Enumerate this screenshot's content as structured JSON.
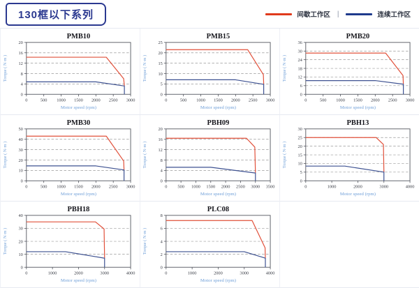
{
  "header": {
    "title": "130框以下系列"
  },
  "legend": {
    "separator": "|",
    "items": [
      {
        "label": "间歇工作区",
        "color": "#E03A1C"
      },
      {
        "label": "连续工作区",
        "color": "#1E3A8C"
      }
    ]
  },
  "colors": {
    "accent_navy": "#2B3990",
    "axis_label_blue": "#6F9FD8",
    "line_red": "#E1503A",
    "line_blue": "#3D5191",
    "grid_gray": "#999999",
    "axis_gray": "#52555E",
    "tick_text": "#3A3D46"
  },
  "chart_data": [
    {
      "type": "line",
      "title": "PMB10",
      "xlabel": "Motor speed (rpm)",
      "ylabel": "Torque ( N·m )",
      "xlim": [
        0,
        3000
      ],
      "ylim": [
        0,
        20
      ],
      "xticks": [
        0,
        500,
        1000,
        1500,
        2000,
        2500,
        3000
      ],
      "yticks": [
        0,
        4,
        8,
        12,
        16,
        20
      ],
      "grid": "horizontal-dashed",
      "legend_position": "none",
      "series": [
        {
          "name": "间歇工作区",
          "color": "#E1503A",
          "points": [
            [
              0,
              14.3
            ],
            [
              2300,
              14.3
            ],
            [
              2800,
              6
            ],
            [
              2820,
              3.2
            ]
          ]
        },
        {
          "name": "连续工作区",
          "color": "#3D5191",
          "points": [
            [
              0,
              4.8
            ],
            [
              2000,
              4.8
            ],
            [
              2820,
              3.2
            ],
            [
              2820,
              0
            ]
          ]
        }
      ]
    },
    {
      "type": "line",
      "title": "PMB15",
      "xlabel": "Motor speed (rpm)",
      "ylabel": "Torque ( N·m )",
      "xlim": [
        0,
        3000
      ],
      "ylim": [
        0,
        25
      ],
      "xticks": [
        0,
        500,
        1000,
        1500,
        2000,
        2500,
        3000
      ],
      "yticks": [
        0,
        5,
        10,
        15,
        20,
        25
      ],
      "grid": "horizontal-dashed",
      "legend_position": "none",
      "series": [
        {
          "name": "间歇工作区",
          "color": "#E1503A",
          "points": [
            [
              0,
              21.5
            ],
            [
              2350,
              21.5
            ],
            [
              2800,
              9.5
            ],
            [
              2810,
              5
            ]
          ]
        },
        {
          "name": "连续工作区",
          "color": "#3D5191",
          "points": [
            [
              0,
              7
            ],
            [
              2000,
              7
            ],
            [
              2810,
              4.8
            ],
            [
              2810,
              0
            ]
          ]
        }
      ]
    },
    {
      "type": "line",
      "title": "PMB20",
      "xlabel": "Motor speed (rpm)",
      "ylabel": "Torque ( N·m )",
      "xlim": [
        0,
        3000
      ],
      "ylim": [
        0,
        36
      ],
      "xticks": [
        0,
        500,
        1000,
        1500,
        2000,
        2500,
        3000
      ],
      "yticks": [
        0,
        6,
        12,
        18,
        24,
        30,
        36
      ],
      "grid": "horizontal-dashed",
      "legend_position": "none",
      "series": [
        {
          "name": "间歇工作区",
          "color": "#E1503A",
          "points": [
            [
              0,
              28.6
            ],
            [
              2300,
              28.6
            ],
            [
              2800,
              13
            ],
            [
              2810,
              7
            ]
          ]
        },
        {
          "name": "连续工作区",
          "color": "#3D5191",
          "points": [
            [
              0,
              9.5
            ],
            [
              2000,
              9.5
            ],
            [
              2810,
              7
            ],
            [
              2810,
              0
            ]
          ]
        }
      ]
    },
    {
      "type": "line",
      "title": "PMB30",
      "xlabel": "Motor speed (rpm)",
      "ylabel": "Torque ( N·m )",
      "xlim": [
        0,
        3000
      ],
      "ylim": [
        0,
        50
      ],
      "xticks": [
        0,
        500,
        1000,
        1500,
        2000,
        2500,
        3000
      ],
      "yticks": [
        0,
        10,
        20,
        30,
        40,
        50
      ],
      "grid": "horizontal-dashed",
      "legend_position": "none",
      "series": [
        {
          "name": "间歇工作区",
          "color": "#E1503A",
          "points": [
            [
              0,
              43
            ],
            [
              2300,
              43
            ],
            [
              2800,
              19
            ],
            [
              2810,
              10.5
            ]
          ]
        },
        {
          "name": "连续工作区",
          "color": "#3D5191",
          "points": [
            [
              0,
              14.3
            ],
            [
              2000,
              14.3
            ],
            [
              2810,
              10.5
            ],
            [
              2810,
              0
            ]
          ]
        }
      ]
    },
    {
      "type": "line",
      "title": "PBH09",
      "xlabel": "Motor speed (rpm)",
      "ylabel": "Torque ( N·m )",
      "xlim": [
        0,
        3500
      ],
      "ylim": [
        0,
        20
      ],
      "xticks": [
        0,
        500,
        1000,
        1500,
        2000,
        2500,
        3000,
        3500
      ],
      "yticks": [
        0,
        4,
        8,
        12,
        16,
        20
      ],
      "grid": "horizontal-dashed",
      "legend_position": "none",
      "series": [
        {
          "name": "间歇工作区",
          "color": "#E1503A",
          "points": [
            [
              0,
              16.4
            ],
            [
              2700,
              16.4
            ],
            [
              2980,
              13
            ],
            [
              3000,
              3
            ]
          ]
        },
        {
          "name": "连续工作区",
          "color": "#3D5191",
          "points": [
            [
              0,
              5.2
            ],
            [
              1500,
              5.2
            ],
            [
              3000,
              3
            ],
            [
              3000,
              0
            ]
          ]
        }
      ]
    },
    {
      "type": "line",
      "title": "PBH13",
      "xlabel": "Motor speed (rpm)",
      "ylabel": "Torque ( N·m )",
      "xlim": [
        0,
        4000
      ],
      "ylim": [
        0,
        30
      ],
      "xticks": [
        0,
        1000,
        2000,
        3000,
        4000
      ],
      "yticks": [
        0,
        5,
        10,
        15,
        20,
        25,
        30
      ],
      "grid": "horizontal-dashed",
      "legend_position": "none",
      "series": [
        {
          "name": "间歇工作区",
          "color": "#E1503A",
          "points": [
            [
              0,
              25
            ],
            [
              2700,
              25
            ],
            [
              2980,
              21
            ],
            [
              3000,
              5
            ]
          ]
        },
        {
          "name": "连续工作区",
          "color": "#3D5191",
          "points": [
            [
              0,
              8.5
            ],
            [
              1500,
              8.5
            ],
            [
              3000,
              5
            ],
            [
              3000,
              0
            ]
          ]
        }
      ]
    },
    {
      "type": "line",
      "title": "PBH18",
      "xlabel": "Motor speed (rpm)",
      "ylabel": "Torque ( N·m )",
      "xlim": [
        0,
        4000
      ],
      "ylim": [
        0,
        40
      ],
      "xticks": [
        0,
        1000,
        2000,
        3000,
        4000
      ],
      "yticks": [
        0,
        10,
        20,
        30,
        40
      ],
      "grid": "horizontal-dashed",
      "legend_position": "none",
      "series": [
        {
          "name": "间歇工作区",
          "color": "#E1503A",
          "points": [
            [
              0,
              35
            ],
            [
              2650,
              35
            ],
            [
              2980,
              29.5
            ],
            [
              3000,
              7
            ]
          ]
        },
        {
          "name": "连续工作区",
          "color": "#3D5191",
          "points": [
            [
              0,
              12
            ],
            [
              1500,
              12
            ],
            [
              3000,
              7
            ],
            [
              3000,
              0
            ]
          ]
        }
      ]
    },
    {
      "type": "line",
      "title": "PLC08",
      "xlabel": "Motor speed (rpm)",
      "ylabel": "Torque ( N·m )",
      "xlim": [
        0,
        4000
      ],
      "ylim": [
        0,
        8
      ],
      "xticks": [
        0,
        1000,
        2000,
        3000,
        4000
      ],
      "yticks": [
        0,
        2,
        4,
        6,
        8
      ],
      "grid": "horizontal-dashed",
      "legend_position": "none",
      "series": [
        {
          "name": "间歇工作区",
          "color": "#E1503A",
          "points": [
            [
              0,
              7.2
            ],
            [
              3300,
              7.2
            ],
            [
              3800,
              3
            ],
            [
              3810,
              1.4
            ]
          ]
        },
        {
          "name": "连续工作区",
          "color": "#3D5191",
          "points": [
            [
              0,
              2.4
            ],
            [
              3000,
              2.4
            ],
            [
              3810,
              1.4
            ],
            [
              3810,
              0
            ]
          ]
        }
      ]
    }
  ]
}
